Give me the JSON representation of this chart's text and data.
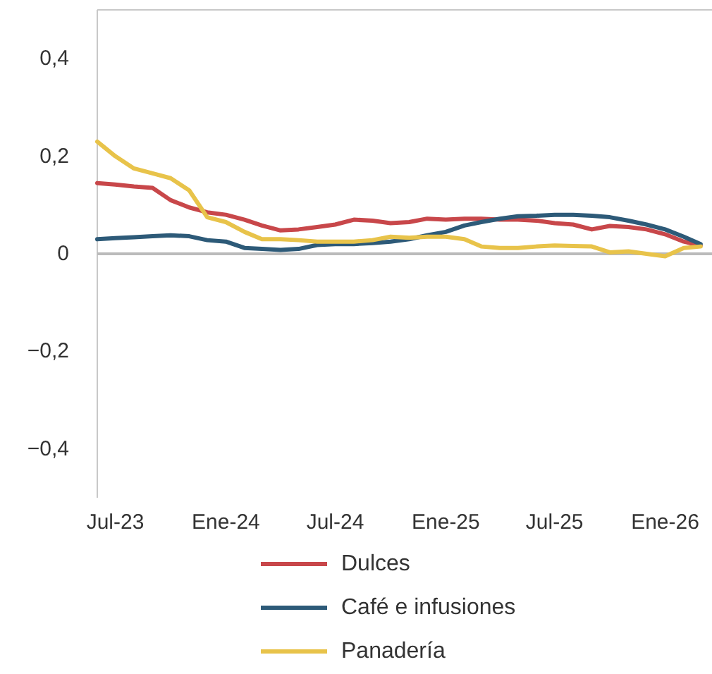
{
  "chart_data": {
    "type": "line",
    "x": [
      "2023-06-01",
      "2023-07-01",
      "2023-08-01",
      "2023-09-01",
      "2023-10-01",
      "2023-11-01",
      "2023-12-01",
      "2024-01-01",
      "2024-02-01",
      "2024-03-01",
      "2024-04-01",
      "2024-05-01",
      "2024-06-01",
      "2024-07-01",
      "2024-08-01",
      "2024-09-01",
      "2024-10-01",
      "2024-11-01",
      "2024-12-01",
      "2025-01-01",
      "2025-02-01",
      "2025-03-01",
      "2025-04-01",
      "2025-05-01",
      "2025-06-01",
      "2025-07-01",
      "2025-08-01",
      "2025-09-01",
      "2025-10-01",
      "2025-11-01",
      "2025-12-01",
      "2026-01-01",
      "2026-02-01",
      "2026-03-01"
    ],
    "series": [
      {
        "name": "Dulces",
        "color": "#c8474a",
        "values": [
          0.145,
          0.142,
          0.138,
          0.135,
          0.11,
          0.095,
          0.085,
          0.08,
          0.07,
          0.058,
          0.048,
          0.05,
          0.055,
          0.06,
          0.07,
          0.068,
          0.063,
          0.065,
          0.072,
          0.07,
          0.072,
          0.072,
          0.07,
          0.07,
          0.068,
          0.063,
          0.06,
          0.05,
          0.057,
          0.055,
          0.05,
          0.04,
          0.025,
          0.017
        ]
      },
      {
        "name": "Café e infusiones",
        "color": "#2d5a78",
        "values": [
          0.03,
          0.032,
          0.034,
          0.036,
          0.038,
          0.036,
          0.028,
          0.025,
          0.012,
          0.01,
          0.008,
          0.01,
          0.018,
          0.02,
          0.02,
          0.022,
          0.025,
          0.03,
          0.038,
          0.045,
          0.058,
          0.065,
          0.072,
          0.077,
          0.078,
          0.08,
          0.08,
          0.078,
          0.075,
          0.068,
          0.06,
          0.05,
          0.035,
          0.02
        ]
      },
      {
        "name": "Panadería",
        "color": "#e8c34a",
        "values": [
          0.23,
          0.2,
          0.175,
          0.165,
          0.155,
          0.13,
          0.075,
          0.065,
          0.045,
          0.03,
          0.03,
          0.028,
          0.025,
          0.025,
          0.025,
          0.028,
          0.035,
          0.033,
          0.035,
          0.035,
          0.03,
          0.015,
          0.012,
          0.012,
          0.015,
          0.017,
          0.016,
          0.015,
          0.003,
          0.005,
          0.0,
          -0.005,
          0.012,
          0.015
        ]
      }
    ],
    "xlim": [
      "2023-06-01",
      "2026-03-20"
    ],
    "xticks": [
      {
        "value": "2023-07-01",
        "label": "Jul-23"
      },
      {
        "value": "2024-01-01",
        "label": "Ene-24"
      },
      {
        "value": "2024-07-01",
        "label": "Jul-24"
      },
      {
        "value": "2025-01-01",
        "label": "Ene-25"
      },
      {
        "value": "2025-07-01",
        "label": "Jul-25"
      },
      {
        "value": "2026-01-01",
        "label": "Ene-26"
      }
    ],
    "ylim": [
      -0.5,
      0.5
    ],
    "yticks": [
      {
        "value": -0.4,
        "label": "−0,4"
      },
      {
        "value": -0.2,
        "label": "−0,2"
      },
      {
        "value": 0,
        "label": "0"
      },
      {
        "value": 0.2,
        "label": "0,2"
      },
      {
        "value": 0.4,
        "label": "0,4"
      }
    ],
    "ref_lines": [
      {
        "axis": "y",
        "value": 0,
        "color": "#bbbbbb"
      }
    ],
    "grid": false,
    "legend": "bottom",
    "line_style": "solid",
    "marker": "none"
  }
}
